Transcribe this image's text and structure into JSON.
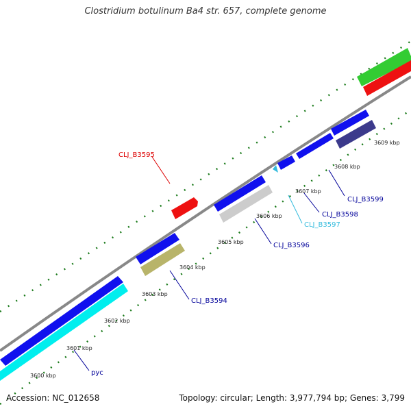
{
  "title": "Clostridium botulinum Ba4 str. 657, complete genome",
  "footer": {
    "accession": "Accession: NC_012658",
    "summary": "Topology: circular; Length: 3,977,794 bp; Genes: 3,799"
  },
  "kbp_labels": [
    "3600 kbp",
    "3601 kbp",
    "3602 kbp",
    "3603 kbp",
    "3604 kbp",
    "3605 kbp",
    "3606 kbp",
    "3607 kbp",
    "3608 kbp",
    "3609 kbp"
  ],
  "gene_labels": [
    {
      "text": "CLJ_B3595",
      "color": "#dd0000"
    },
    {
      "text": "CLJ_B3599",
      "color": "#000099"
    },
    {
      "text": "CLJ_B3598",
      "color": "#000099"
    },
    {
      "text": "CLJ_B3597",
      "color": "#33bbdd"
    },
    {
      "text": "CLJ_B3596",
      "color": "#000099"
    },
    {
      "text": "CLJ_B3594",
      "color": "#000099"
    },
    {
      "text": "pyc",
      "color": "#000099"
    }
  ],
  "colors": {
    "backbone": "#888888",
    "tick": "#1a7a1a",
    "forward_gene": "#1010ee",
    "reverse_gene_cyan": "#00eeee",
    "reverse_gene_gray": "#cccccc",
    "reverse_gene_olive": "#b8b46a",
    "reverse_gene_navy": "#3c3a8c",
    "rna_red": "#ee1111",
    "rna_green": "#33cc33"
  }
}
